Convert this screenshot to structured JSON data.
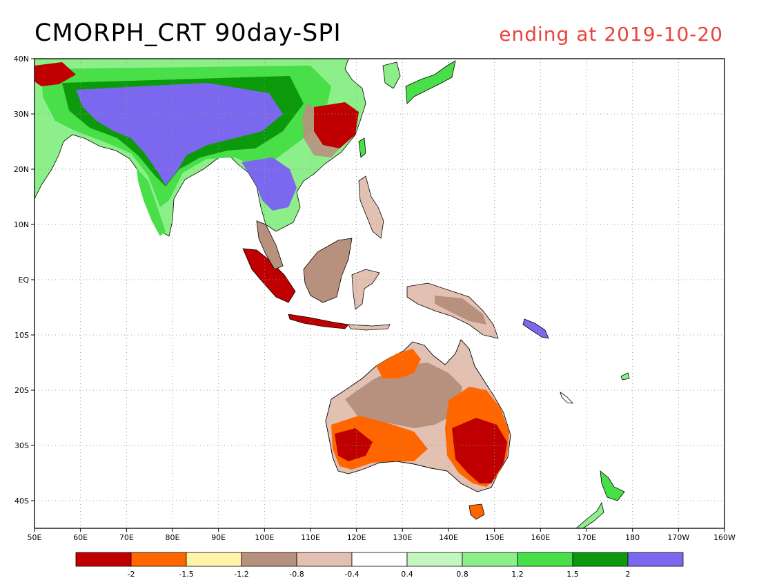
{
  "header": {
    "title": "CMORPH_CRT 90day-SPI",
    "date_label": "ending at 2019-10-20"
  },
  "map": {
    "lat_ticks": [
      "40N",
      "30N",
      "20N",
      "10N",
      "EQ",
      "10S",
      "20S",
      "30S",
      "40S"
    ],
    "lon_ticks": [
      "50E",
      "60E",
      "70E",
      "80E",
      "90E",
      "100E",
      "110E",
      "120E",
      "130E",
      "140E",
      "150E",
      "160E",
      "170E",
      "180",
      "170W",
      "160W"
    ],
    "extent": {
      "lon_min": 50,
      "lon_max": 200,
      "lat_min": -45,
      "lat_max": 40
    },
    "grid": true
  },
  "legend": {
    "colors": [
      "#c00000",
      "#ff6600",
      "#fff3a8",
      "#b8907e",
      "#e2c0b2",
      "#ffffff",
      "#c4f7c0",
      "#8cef8a",
      "#48df48",
      "#0c9a0c",
      "#7b68ee"
    ],
    "labels": [
      "-2",
      "-1.5",
      "-1.2",
      "-0.8",
      "-0.4",
      "0.4",
      "0.8",
      "1.2",
      "1.5",
      "2"
    ]
  }
}
